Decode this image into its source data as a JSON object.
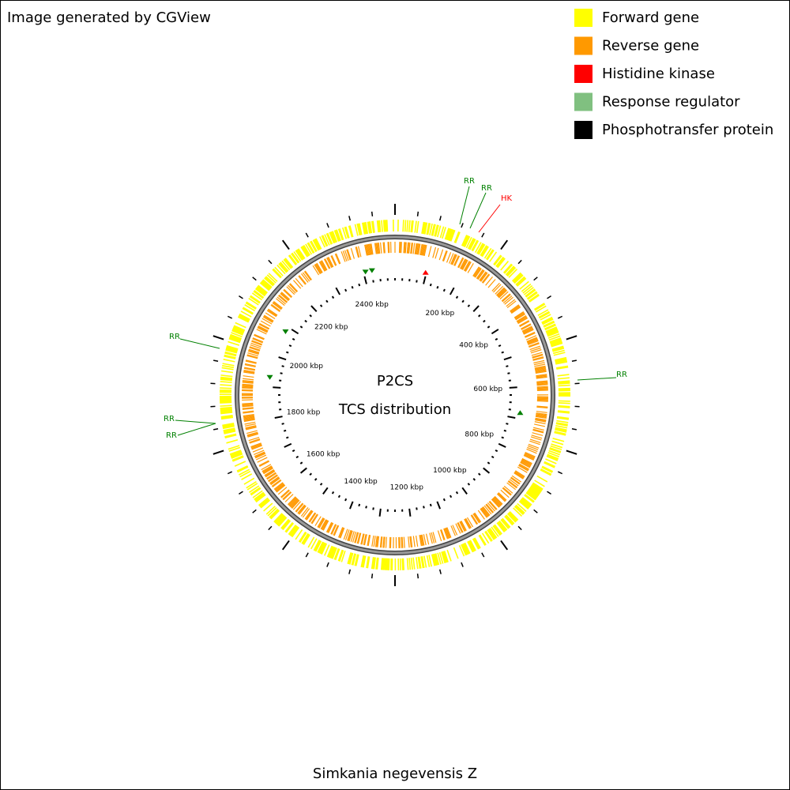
{
  "header": {
    "credit": "Image generated by CGView"
  },
  "legend": [
    {
      "label": "Forward gene",
      "color": "#ffff00"
    },
    {
      "label": "Reverse gene",
      "color": "#ff9900"
    },
    {
      "label": "Histidine kinase",
      "color": "#ff0000"
    },
    {
      "label": "Response regulator",
      "color": "#80c080"
    },
    {
      "label": "Phosphotransfer protein",
      "color": "#000000"
    }
  ],
  "map": {
    "title": "P2CS",
    "subtitle": "TCS distribution",
    "ticks": [
      "200 kbp",
      "400 kbp",
      "600 kbp",
      "800 kbp",
      "1000 kbp",
      "1200 kbp",
      "1400 kbp",
      "1600 kbp",
      "1800 kbp",
      "2000 kbp",
      "2200 kbp",
      "2400 kbp"
    ],
    "features": [
      {
        "label": "RR",
        "color": "#008000"
      },
      {
        "label": "RR",
        "color": "#008000"
      },
      {
        "label": "HK",
        "color": "#ff0000"
      },
      {
        "label": "RR",
        "color": "#008000"
      },
      {
        "label": "RR",
        "color": "#008000"
      },
      {
        "label": "RR",
        "color": "#008000"
      },
      {
        "label": "RR",
        "color": "#008000"
      }
    ]
  },
  "footer": {
    "organism": "Simkania negevensis Z"
  }
}
